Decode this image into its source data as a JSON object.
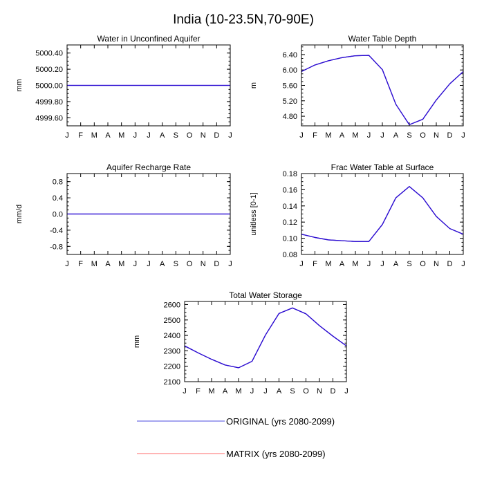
{
  "figure": {
    "title": "India (10-23.5N,70-90E)"
  },
  "legend": {
    "entries": [
      {
        "label": "ORIGINAL (yrs 2080-2099)",
        "color": "#4a4adf"
      },
      {
        "label": "MATRIX (yrs 2080-2099)",
        "color": "#ff6b6b"
      }
    ]
  },
  "colors": {
    "line": "#2e0fd1",
    "frame": "#000000"
  },
  "chart_data": [
    {
      "type": "line",
      "title": "Water in Unconfined Aquifer",
      "ylabel": "mm",
      "xlabel": "",
      "categories": [
        "J",
        "F",
        "M",
        "A",
        "M",
        "J",
        "J",
        "A",
        "S",
        "O",
        "N",
        "D",
        "J"
      ],
      "ylim": [
        4999.5,
        5000.5
      ],
      "yticks": [
        4999.6,
        4999.8,
        5000.0,
        5000.2,
        5000.4
      ],
      "ytick_labels": [
        "4999.60",
        "4999.80",
        "5000.00",
        "5000.20",
        "5000.40"
      ],
      "series": [
        {
          "name": "ORIGINAL (yrs 2080-2099)",
          "values": [
            5000,
            5000,
            5000,
            5000,
            5000,
            5000,
            5000,
            5000,
            5000,
            5000,
            5000,
            5000,
            5000
          ]
        },
        {
          "name": "MATRIX (yrs 2080-2099)",
          "values": [
            5000,
            5000,
            5000,
            5000,
            5000,
            5000,
            5000,
            5000,
            5000,
            5000,
            5000,
            5000,
            5000
          ]
        }
      ]
    },
    {
      "type": "line",
      "title": "Water Table Depth",
      "ylabel": "m",
      "xlabel": "",
      "categories": [
        "J",
        "F",
        "M",
        "A",
        "M",
        "J",
        "J",
        "A",
        "S",
        "O",
        "N",
        "D",
        "J"
      ],
      "ylim": [
        4.55,
        6.65
      ],
      "yticks": [
        4.8,
        5.2,
        5.6,
        6.0,
        6.4
      ],
      "ytick_labels": [
        "4.80",
        "5.20",
        "5.60",
        "6.00",
        "6.40"
      ],
      "series": [
        {
          "name": "ORIGINAL (yrs 2080-2099)",
          "values": [
            5.96,
            6.13,
            6.24,
            6.32,
            6.37,
            6.38,
            6.01,
            5.11,
            4.58,
            4.72,
            5.22,
            5.64,
            5.96
          ]
        },
        {
          "name": "MATRIX (yrs 2080-2099)",
          "values": [
            5.96,
            6.13,
            6.24,
            6.32,
            6.37,
            6.38,
            6.01,
            5.11,
            4.58,
            4.72,
            5.22,
            5.64,
            5.96
          ]
        }
      ]
    },
    {
      "type": "line",
      "title": "Aquifer Recharge Rate",
      "ylabel": "mm/d",
      "xlabel": "",
      "categories": [
        "J",
        "F",
        "M",
        "A",
        "M",
        "J",
        "J",
        "A",
        "S",
        "O",
        "N",
        "D",
        "J"
      ],
      "ylim": [
        -1.0,
        1.0
      ],
      "yticks": [
        -0.8,
        -0.4,
        0.0,
        0.4,
        0.8
      ],
      "ytick_labels": [
        "-0.8",
        "-0.4",
        "0.0",
        "0.4",
        "0.8"
      ],
      "series": [
        {
          "name": "ORIGINAL (yrs 2080-2099)",
          "values": [
            0,
            0,
            0,
            0,
            0,
            0,
            0,
            0,
            0,
            0,
            0,
            0,
            0
          ]
        },
        {
          "name": "MATRIX (yrs 2080-2099)",
          "values": [
            0,
            0,
            0,
            0,
            0,
            0,
            0,
            0,
            0,
            0,
            0,
            0,
            0
          ]
        }
      ]
    },
    {
      "type": "line",
      "title": "Frac Water Table at Surface",
      "ylabel": "unitless [0-1]",
      "xlabel": "",
      "categories": [
        "J",
        "F",
        "M",
        "A",
        "M",
        "J",
        "J",
        "A",
        "S",
        "O",
        "N",
        "D",
        "J"
      ],
      "ylim": [
        0.08,
        0.18
      ],
      "yticks": [
        0.08,
        0.1,
        0.12,
        0.14,
        0.16,
        0.18
      ],
      "ytick_labels": [
        "0.08",
        "0.10",
        "0.12",
        "0.14",
        "0.16",
        "0.18"
      ],
      "series": [
        {
          "name": "ORIGINAL (yrs 2080-2099)",
          "values": [
            0.105,
            0.101,
            0.098,
            0.097,
            0.096,
            0.096,
            0.117,
            0.15,
            0.164,
            0.15,
            0.127,
            0.112,
            0.105
          ]
        },
        {
          "name": "MATRIX (yrs 2080-2099)",
          "values": [
            0.105,
            0.101,
            0.098,
            0.097,
            0.096,
            0.096,
            0.117,
            0.15,
            0.164,
            0.15,
            0.127,
            0.112,
            0.105
          ]
        }
      ]
    },
    {
      "type": "line",
      "title": "Total Water Storage",
      "ylabel": "mm",
      "xlabel": "",
      "categories": [
        "J",
        "F",
        "M",
        "A",
        "M",
        "J",
        "J",
        "A",
        "S",
        "O",
        "N",
        "D",
        "J"
      ],
      "ylim": [
        2100,
        2620
      ],
      "yticks": [
        2100,
        2200,
        2300,
        2400,
        2500,
        2600
      ],
      "ytick_labels": [
        "2100",
        "2200",
        "2300",
        "2400",
        "2500",
        "2600"
      ],
      "series": [
        {
          "name": "ORIGINAL (yrs 2080-2099)",
          "values": [
            2332,
            2287,
            2245,
            2208,
            2190,
            2232,
            2403,
            2542,
            2578,
            2540,
            2463,
            2395,
            2332
          ]
        },
        {
          "name": "MATRIX (yrs 2080-2099)",
          "values": [
            2332,
            2287,
            2245,
            2208,
            2190,
            2232,
            2403,
            2542,
            2578,
            2540,
            2463,
            2395,
            2332
          ]
        }
      ]
    }
  ]
}
